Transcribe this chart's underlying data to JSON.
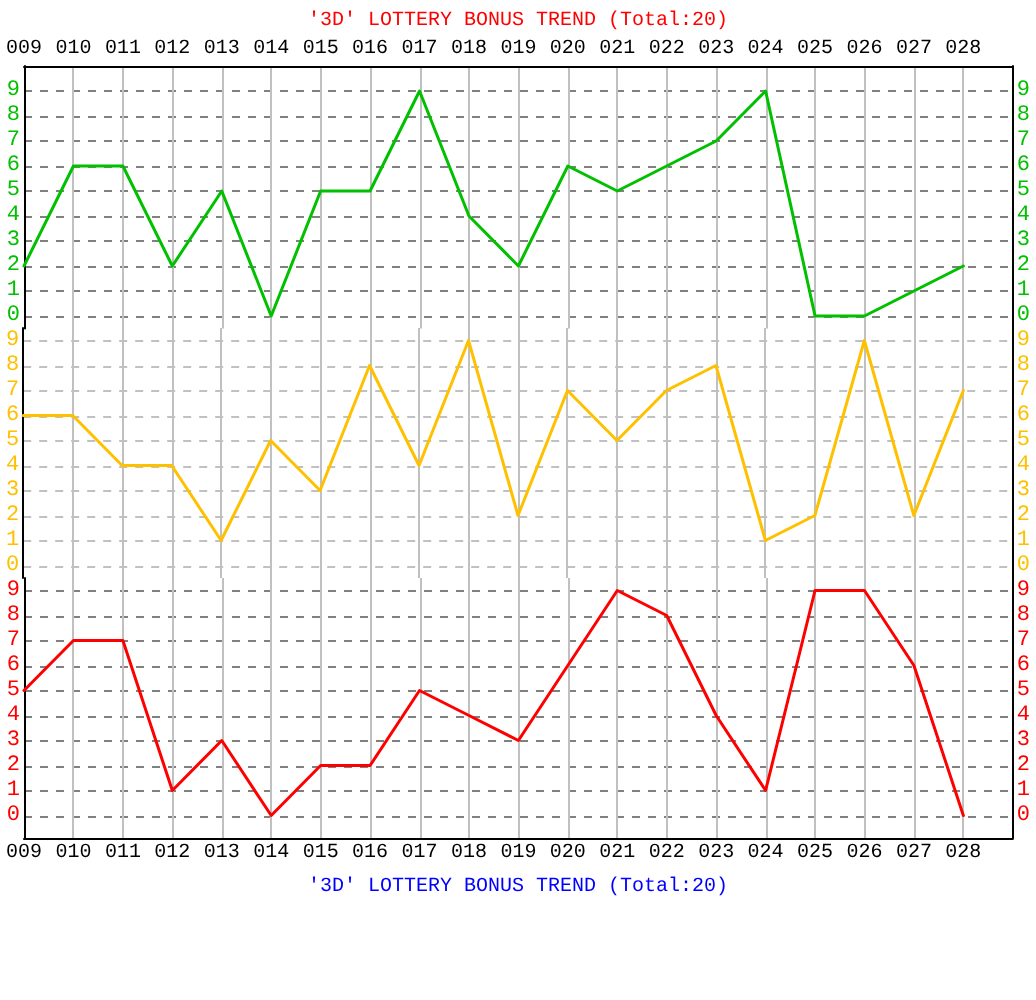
{
  "chart_data": [
    {
      "type": "line",
      "title": "'3D' LOTTERY BONUS TREND (Total:20)",
      "categories": [
        "009",
        "010",
        "011",
        "012",
        "013",
        "014",
        "015",
        "016",
        "017",
        "018",
        "019",
        "020",
        "021",
        "022",
        "023",
        "024",
        "025",
        "026",
        "027",
        "028"
      ],
      "series": [
        {
          "color": "#00c000",
          "values": [
            2,
            6,
            6,
            2,
            5,
            0,
            5,
            5,
            9,
            4,
            2,
            6,
            5,
            6,
            7,
            9,
            0,
            0,
            1,
            2
          ]
        }
      ],
      "ylim": [
        -0.5,
        10
      ],
      "yticks": [
        0,
        1,
        2,
        3,
        4,
        5,
        6,
        7,
        8,
        9
      ],
      "y2lim": [
        -0.5,
        10
      ],
      "y2ticks": [
        0,
        1,
        2,
        3,
        4,
        5,
        6,
        7,
        8,
        9
      ],
      "grid": true,
      "marker": "none",
      "line_style": "solid"
    },
    {
      "type": "line",
      "categories": [
        "009",
        "010",
        "011",
        "012",
        "013",
        "014",
        "015",
        "016",
        "017",
        "018",
        "019",
        "020",
        "021",
        "022",
        "023",
        "024",
        "025",
        "026",
        "027",
        "028"
      ],
      "series": [
        {
          "color": "#ffc000",
          "values": [
            6,
            6,
            4,
            4,
            1,
            5,
            3,
            8,
            4,
            9,
            2,
            7,
            5,
            7,
            8,
            1,
            2,
            9,
            2,
            7
          ]
        }
      ],
      "ylim": [
        -0.5,
        9.5
      ],
      "yticks": [
        0,
        1,
        2,
        3,
        4,
        5,
        6,
        7,
        8,
        9
      ],
      "y2lim": [
        -0.5,
        9.5
      ],
      "y2ticks": [
        0,
        1,
        2,
        3,
        4,
        5,
        6,
        7,
        8,
        9
      ],
      "grid": true,
      "marker": "none",
      "line_style": "solid",
      "tick_labels": "y"
    },
    {
      "type": "line",
      "annotations": [
        "'3D' LOTTERY BONUS TREND (Total:20)"
      ],
      "categories": [
        "009",
        "010",
        "011",
        "012",
        "013",
        "014",
        "015",
        "016",
        "017",
        "018",
        "019",
        "020",
        "021",
        "022",
        "023",
        "024",
        "025",
        "026",
        "027",
        "028"
      ],
      "series": [
        {
          "color": "#ff0000",
          "values": [
            5,
            7,
            7,
            1,
            3,
            0,
            2,
            2,
            5,
            4,
            3,
            6,
            9,
            8,
            4,
            1,
            9,
            9,
            6,
            0
          ]
        }
      ],
      "ylim": [
        -0.9,
        9.5
      ],
      "yticks": [
        0,
        1,
        2,
        3,
        4,
        5,
        6,
        7,
        8,
        9
      ],
      "y2lim": [
        -0.9,
        9.5
      ],
      "y2ticks": [
        0,
        1,
        2,
        3,
        4,
        5,
        6,
        7,
        8,
        9
      ],
      "grid": true,
      "marker": "none",
      "line_style": "solid"
    }
  ]
}
